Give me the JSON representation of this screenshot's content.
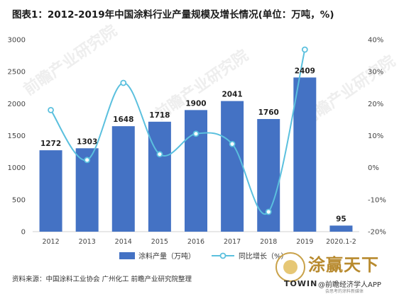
{
  "title": "图表1：2012-2019年中国涂料行业产量规模及增长情况(单位：万吨，%)",
  "source": "资料来源：中国涂料工业协会 广州化工 前瞻产业研究院整理",
  "watermark": "前瞻产业研究院",
  "footer": {
    "brand": "涂赢天下",
    "towin": "TOWIN",
    "app": "@前瞻经济学人APP",
    "tagline": "会思考的涂料新媒体"
  },
  "colors": {
    "bar": "#4472c4",
    "line": "#5bc0de",
    "marker_fill": "#ffffff",
    "grid": "#e6e6e6"
  },
  "chart_data": {
    "type": "bar",
    "categories": [
      "2012",
      "2013",
      "2014",
      "2015",
      "2016",
      "2017",
      "2018",
      "2019",
      "2020.1-2"
    ],
    "series": [
      {
        "name": "涂料产量（万吨）",
        "type": "bar",
        "axis": "left",
        "values": [
          1272,
          1303,
          1648,
          1718,
          1900,
          2041,
          1760,
          2409,
          95
        ]
      },
      {
        "name": "同比增长（%）",
        "type": "line",
        "axis": "right",
        "values": [
          18,
          2.4,
          26.5,
          4.2,
          10.6,
          7.4,
          -13.8,
          36.9,
          null
        ]
      }
    ],
    "data_labels": [
      "1272",
      "1303",
      "1648",
      "1718",
      "1900",
      "2041",
      "1760",
      "2409",
      "95"
    ],
    "y_ticks": [
      "0",
      "500",
      "1000",
      "1500",
      "2000",
      "2500",
      "3000"
    ],
    "y2_ticks": [
      "-20%",
      "-10%",
      "0%",
      "10%",
      "20%",
      "30%",
      "40%"
    ],
    "ylim": [
      0,
      3000
    ],
    "y2lim": [
      -20,
      40
    ],
    "legend_position": "bottom",
    "grid": false
  }
}
